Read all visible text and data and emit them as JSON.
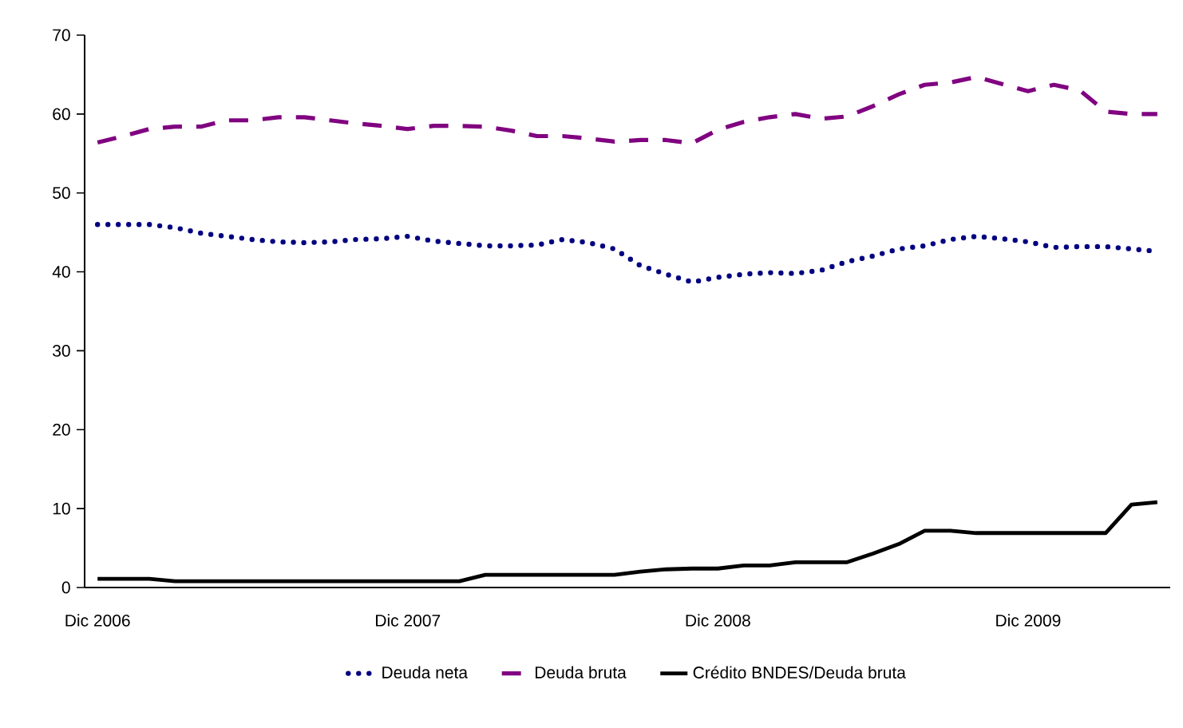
{
  "chart_data": {
    "type": "line",
    "categories": [
      "Dic 2006",
      null,
      null,
      null,
      null,
      null,
      null,
      null,
      null,
      null,
      null,
      null,
      "Dic 2007",
      null,
      null,
      null,
      null,
      null,
      null,
      null,
      null,
      null,
      null,
      null,
      "Dic 2008",
      null,
      null,
      null,
      null,
      null,
      null,
      null,
      null,
      null,
      null,
      null,
      "Dic 2009",
      null,
      null,
      null,
      null,
      null
    ],
    "series": [
      {
        "name": "Deuda neta",
        "color": "#000080",
        "line_style": "dotted",
        "values": [
          46,
          46,
          46,
          45.6,
          44.9,
          44.5,
          44.1,
          43.8,
          43.7,
          43.8,
          44.1,
          44.2,
          44.5,
          43.9,
          43.6,
          43.3,
          43.3,
          43.4,
          44.1,
          43.7,
          42.9,
          40.8,
          39.7,
          38.7,
          39.3,
          39.7,
          39.9,
          39.8,
          40.2,
          41.3,
          42.0,
          42.9,
          43.3,
          44.1,
          44.5,
          44.2,
          43.8,
          43.1,
          43.2,
          43.2,
          42.9,
          42.6
        ]
      },
      {
        "name": "Deuda bruta",
        "color": "#800080",
        "line_style": "dashed",
        "values": [
          56.4,
          57.2,
          58.1,
          58.4,
          58.4,
          59.2,
          59.2,
          59.6,
          59.6,
          59.2,
          58.8,
          58.5,
          58.1,
          58.5,
          58.5,
          58.4,
          57.9,
          57.2,
          57.2,
          56.9,
          56.5,
          56.7,
          56.7,
          56.3,
          58.0,
          59.0,
          59.6,
          60.0,
          59.4,
          59.7,
          61.0,
          62.5,
          63.7,
          64.0,
          64.7,
          63.8,
          62.9,
          63.7,
          63.0,
          60.3,
          60.0,
          60.0
        ]
      },
      {
        "name": "Crédito BNDES/Deuda bruta",
        "color": "#000000",
        "line_style": "solid",
        "values": [
          1.1,
          1.1,
          1.1,
          0.8,
          0.8,
          0.8,
          0.8,
          0.8,
          0.8,
          0.8,
          0.8,
          0.8,
          0.8,
          0.8,
          0.8,
          1.6,
          1.6,
          1.6,
          1.6,
          1.6,
          1.6,
          2.0,
          2.3,
          2.4,
          2.4,
          2.8,
          2.8,
          3.2,
          3.2,
          3.2,
          4.3,
          5.5,
          7.2,
          7.2,
          6.9,
          6.9,
          6.9,
          6.9,
          6.9,
          6.9,
          10.5,
          10.8
        ]
      }
    ],
    "ylim": [
      0,
      70
    ],
    "yticks": [
      0,
      10,
      20,
      30,
      40,
      50,
      60,
      70
    ],
    "grid": false,
    "legend": "bottom",
    "marker": "none"
  }
}
